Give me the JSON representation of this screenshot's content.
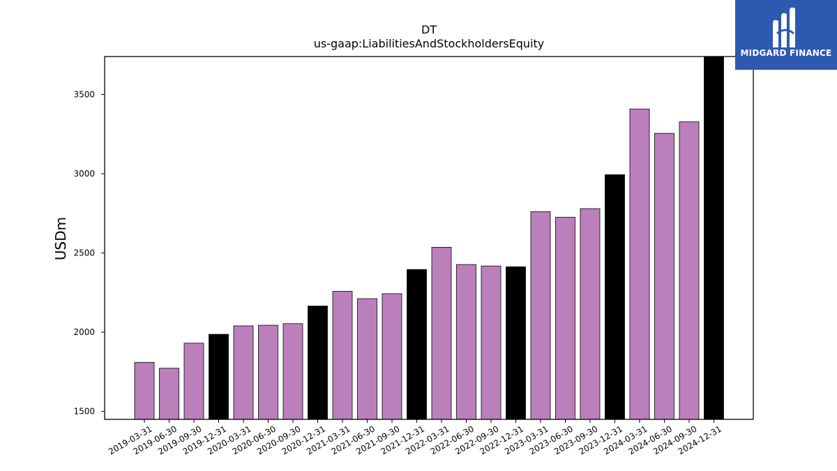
{
  "chart_data": {
    "type": "bar",
    "title": "DT",
    "subtitle": "us-gaap:LiabilitiesAndStockholdersEquity",
    "xlabel": "",
    "ylabel": "USDm",
    "ylim": [
      1450,
      3740
    ],
    "yticks": [
      1500,
      2000,
      2500,
      3000,
      3500
    ],
    "grid": false,
    "categories": [
      "2019-03-31",
      "2019-06-30",
      "2019-09-30",
      "2019-12-31",
      "2020-03-31",
      "2020-06-30",
      "2020-09-30",
      "2020-12-31",
      "2021-03-31",
      "2021-06-30",
      "2021-09-30",
      "2021-12-31",
      "2022-03-31",
      "2022-06-30",
      "2022-09-30",
      "2022-12-31",
      "2023-03-31",
      "2023-06-30",
      "2023-09-30",
      "2023-12-31",
      "2024-03-31",
      "2024-06-30",
      "2024-09-30",
      "2024-12-31"
    ],
    "values": [
      1810,
      1773,
      1931,
      1987,
      2040,
      2044,
      2054,
      2165,
      2258,
      2212,
      2243,
      2396,
      2536,
      2427,
      2418,
      2413,
      2761,
      2726,
      2780,
      2994,
      3409,
      3255,
      3328,
      3740
    ],
    "colors": {
      "quarter": "#bb80bb",
      "year_end": "#000000",
      "edge": "#000000"
    }
  },
  "logo": {
    "text": "MIDGARD FINANCE",
    "background": "#2d5ab0"
  }
}
